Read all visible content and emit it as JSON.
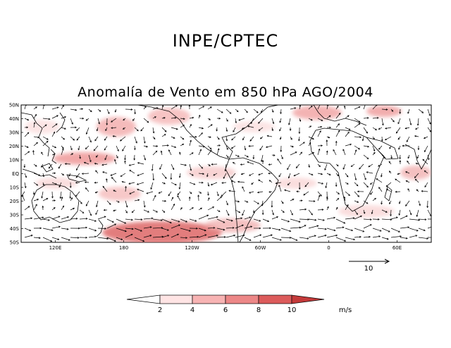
{
  "header": {
    "org": "INPE/CPTEC"
  },
  "map": {
    "title": "Anomalía de Vento em 850 hPa AGO/2004",
    "lat_labels": [
      "50N",
      "40N",
      "30N",
      "20N",
      "10N",
      "EQ",
      "10S",
      "20S",
      "30S",
      "40S",
      "50S"
    ],
    "lon_labels": [
      "120E",
      "180",
      "120W",
      "60W",
      "0",
      "60E"
    ],
    "lon_range": [
      90,
      450
    ],
    "lat_range": [
      -50,
      50
    ],
    "shading_color": "#cc3333",
    "vector_color": "#000000",
    "coast_color": "#000000"
  },
  "reference_vector": {
    "label": "10"
  },
  "colorbar": {
    "ticks": [
      "2",
      "4",
      "6",
      "8",
      "10"
    ],
    "unit": "m/s",
    "colors": [
      "#ffffff",
      "#ffe4e4",
      "#f7b3b3",
      "#ec8787",
      "#dc5b5b",
      "#c43a3a"
    ]
  }
}
